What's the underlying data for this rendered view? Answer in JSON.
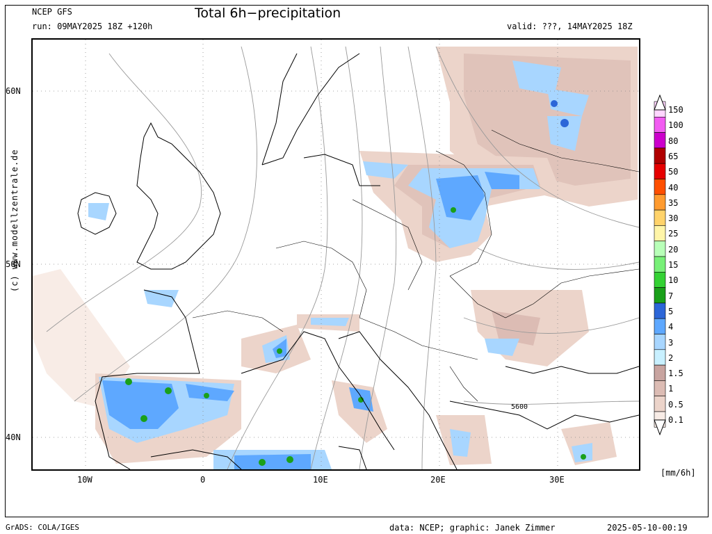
{
  "header": {
    "model": "NCEP GFS",
    "run": "run: 09MAY2025 18Z +120h",
    "title": "Total 6h−precipitation",
    "valid": "valid: ???, 14MAY2025 18Z"
  },
  "map": {
    "lat_labels": [
      "60N",
      "50N",
      "40N"
    ],
    "lon_labels": [
      "10W",
      "0",
      "10E",
      "20E",
      "30E"
    ],
    "contour_label": "5600",
    "side_credit": "(c) www.modellzentrale.de",
    "colors": {
      "land_outline": "#000000",
      "isohypse": "#999999",
      "grid": "#888888"
    }
  },
  "legend": {
    "levels": [
      "150",
      "100",
      "80",
      "65",
      "50",
      "40",
      "35",
      "30",
      "25",
      "20",
      "15",
      "10",
      "7",
      "5",
      "4",
      "3",
      "2",
      "1.5",
      "1",
      "0.5",
      "0.1"
    ],
    "colors": [
      "#ffd6ff",
      "#f25cf2",
      "#cc00cc",
      "#b00000",
      "#e60000",
      "#ff4f00",
      "#ff9b2f",
      "#ffd36b",
      "#fff5a8",
      "#b8ffb8",
      "#78f078",
      "#34d234",
      "#1aa01a",
      "#2c66d8",
      "#5ea8ff",
      "#a8d6ff",
      "#c8f0ff",
      "#c8a4a0",
      "#dcbcb4",
      "#ecd4ca",
      "#f8ece6"
    ],
    "units": "[mm/6h]"
  },
  "footer": {
    "left": "GrADS: COLA/IGES",
    "source": "data: NCEP; graphic: Janek Zimmer",
    "timestamp": "2025-05-10-00:19"
  }
}
